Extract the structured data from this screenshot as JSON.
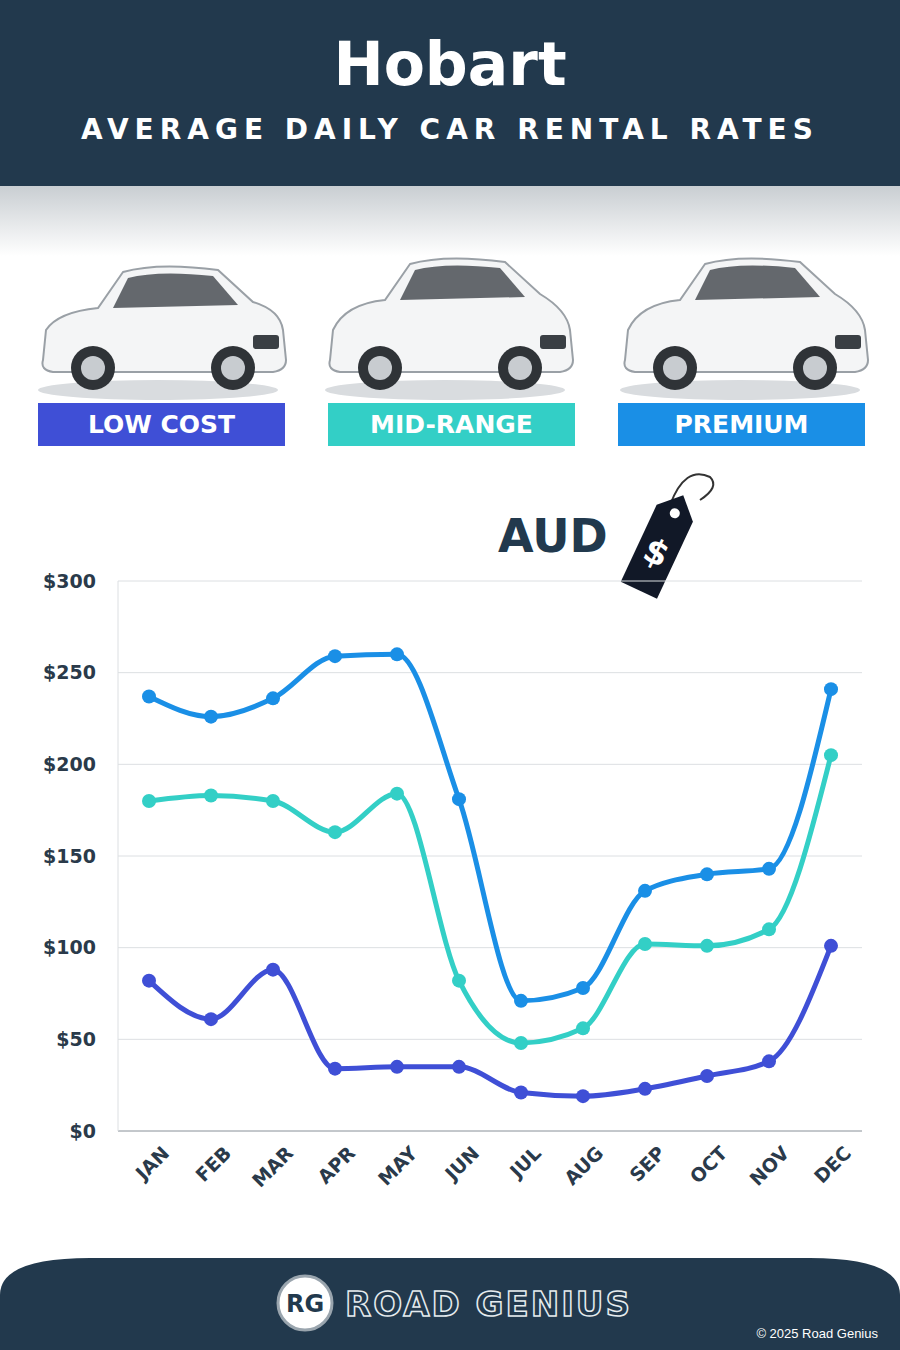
{
  "chart_data": {
    "type": "line",
    "title": "Hobart",
    "subtitle": "AVERAGE DAILY CAR RENTAL RATES",
    "annotations": [
      "AUD",
      "$"
    ],
    "categories": [
      "JAN",
      "FEB",
      "MAR",
      "APR",
      "MAY",
      "JUN",
      "JUL",
      "AUG",
      "SEP",
      "OCT",
      "NOV",
      "DEC"
    ],
    "series": [
      {
        "name": "LOW COST",
        "color": "#3f4fd6",
        "values": [
          82,
          61,
          88,
          34,
          35,
          35,
          21,
          19,
          23,
          30,
          38,
          101
        ]
      },
      {
        "name": "MID-RANGE",
        "color": "#33cfc6",
        "values": [
          180,
          183,
          180,
          163,
          184,
          82,
          48,
          56,
          102,
          101,
          110,
          205
        ]
      },
      {
        "name": "PREMIUM",
        "color": "#1a8fe6",
        "values": [
          237,
          226,
          236,
          259,
          260,
          181,
          71,
          78,
          131,
          140,
          143,
          241
        ]
      }
    ],
    "ylim": [
      0,
      300
    ],
    "yticks": [
      {
        "value": 0,
        "label": "$0"
      },
      {
        "value": 50,
        "label": "$50"
      },
      {
        "value": 100,
        "label": "$100"
      },
      {
        "value": 150,
        "label": "$150"
      },
      {
        "value": 200,
        "label": "$200"
      },
      {
        "value": 250,
        "label": "$250"
      },
      {
        "value": 300,
        "label": "$300"
      }
    ],
    "grid": true,
    "marker": "circle",
    "line_style": "solid"
  },
  "footer": {
    "logo": "RG",
    "brand": "ROAD GENIUS",
    "copyright": "© 2025 Road Genius"
  }
}
